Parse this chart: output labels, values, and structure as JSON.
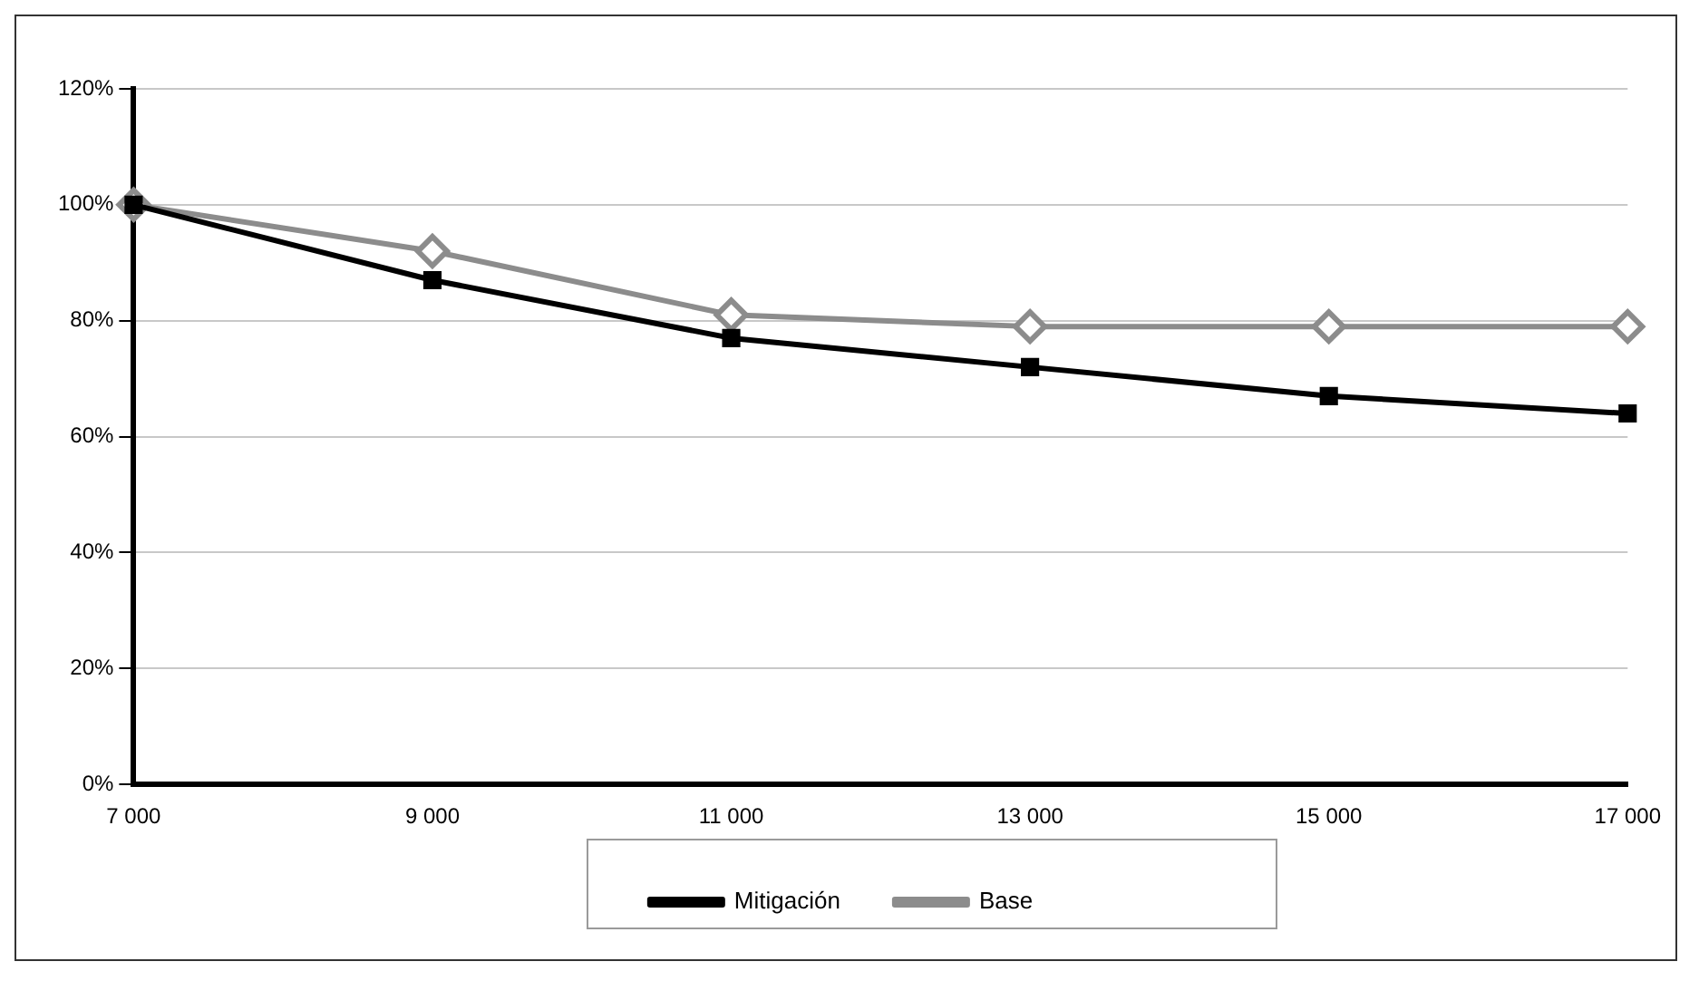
{
  "chart_data": {
    "type": "line",
    "categories": [
      "7 000",
      "9 000",
      "11 000",
      "13 000",
      "15 000",
      "17 000"
    ],
    "series": [
      {
        "name": "Base",
        "color": "#8c8c8c",
        "marker": "diamond",
        "values": [
          100,
          92,
          81,
          79,
          79,
          79
        ]
      },
      {
        "name": "Mitigación",
        "color": "#000000",
        "marker": "square",
        "values": [
          100,
          87,
          77,
          72,
          67,
          64
        ]
      }
    ],
    "ylim": [
      0,
      120
    ],
    "yticks": [
      {
        "value": 0,
        "label": "0%"
      },
      {
        "value": 20,
        "label": "20%"
      },
      {
        "value": 40,
        "label": "40%"
      },
      {
        "value": 60,
        "label": "60%"
      },
      {
        "value": 80,
        "label": "80%"
      },
      {
        "value": 100,
        "label": "100%"
      },
      {
        "value": 120,
        "label": "120%"
      }
    ],
    "grid": "y",
    "legend": "bottom",
    "line_style": "solid"
  }
}
